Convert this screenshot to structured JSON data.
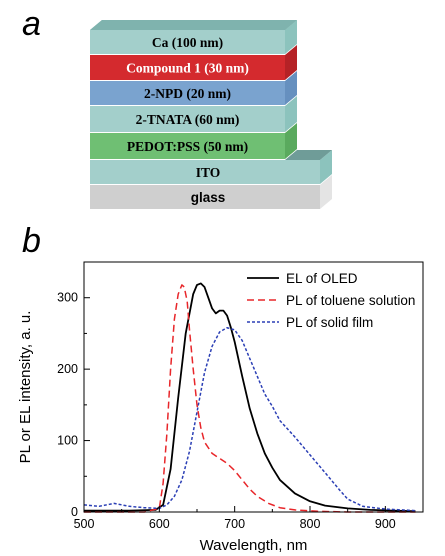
{
  "panels": {
    "a": "a",
    "b": "b"
  },
  "stack": {
    "layers": [
      {
        "label": "Ca (100 nm)",
        "front": "#a3cfcb",
        "top": "#7fb3ae",
        "side": "#8cc3bd",
        "text": "#000000"
      },
      {
        "label": "Compound 1 (30 nm)",
        "front": "#d42a2e",
        "top": "#b21e22",
        "side": "#b52226",
        "text": "#ffffff"
      },
      {
        "label": "2-NPD (20 nm)",
        "front": "#7aa3cf",
        "top": "#5d86b3",
        "side": "#6690bf",
        "text": "#000000"
      },
      {
        "label": "2-TNATA (60 nm)",
        "front": "#a3cfcb",
        "top": "#85b8b3",
        "side": "#8cc3bd",
        "text": "#000000"
      },
      {
        "label": "PEDOT:PSS (50 nm)",
        "front": "#6fbf73",
        "top": "#57a65c",
        "side": "#5aaa5e",
        "text": "#000000"
      },
      {
        "label": "ITO",
        "front": "#a3cfcb",
        "top": "#6f9c98",
        "side": "#8cc3bd",
        "text": "#000000"
      },
      {
        "label": "glass",
        "front": "#cfcfcf",
        "top": "#b9b9b9",
        "side": "#e4e4e4",
        "text": "#000000"
      }
    ]
  },
  "chart_data": {
    "type": "line",
    "xlabel": "Wavelength, nm",
    "ylabel": "PL or EL intensity, a. u.",
    "xlim": [
      500,
      950
    ],
    "ylim": [
      0,
      350
    ],
    "xticks": [
      500,
      600,
      700,
      800,
      900
    ],
    "yticks": [
      0,
      100,
      200,
      300
    ],
    "legend_position": "top-right",
    "series": [
      {
        "name": "EL of OLED",
        "color": "#000000",
        "dash": "solid",
        "x": [
          500,
          560,
          595,
          605,
          615,
          625,
          635,
          645,
          650,
          655,
          660,
          665,
          670,
          675,
          680,
          685,
          690,
          695,
          700,
          710,
          720,
          730,
          740,
          750,
          760,
          780,
          800,
          820,
          850,
          880,
          910,
          940
        ],
        "y": [
          2,
          2,
          3,
          10,
          60,
          160,
          250,
          305,
          318,
          320,
          315,
          300,
          285,
          278,
          282,
          282,
          275,
          258,
          238,
          190,
          145,
          110,
          82,
          62,
          45,
          26,
          15,
          9,
          5,
          3,
          2,
          1
        ]
      },
      {
        "name": "PL of toluene solution",
        "color": "#e8262a",
        "dash": "dashed",
        "x": [
          500,
          580,
          600,
          605,
          610,
          615,
          620,
          625,
          630,
          633,
          637,
          640,
          645,
          650,
          655,
          660,
          670,
          680,
          690,
          700,
          710,
          720,
          730,
          745,
          760,
          780,
          810,
          850,
          940
        ],
        "y": [
          0,
          0,
          5,
          40,
          110,
          200,
          270,
          305,
          318,
          315,
          295,
          255,
          200,
          150,
          118,
          98,
          82,
          75,
          68,
          58,
          45,
          32,
          22,
          12,
          6,
          3,
          1,
          0,
          0
        ]
      },
      {
        "name": "PL of solid film",
        "color": "#2b3fb5",
        "dash": "dotted",
        "x": [
          500,
          520,
          540,
          560,
          580,
          600,
          610,
          620,
          630,
          640,
          650,
          660,
          670,
          680,
          690,
          700,
          710,
          720,
          730,
          740,
          750,
          760,
          780,
          800,
          820,
          840,
          850,
          870,
          900,
          940
        ],
        "y": [
          10,
          8,
          12,
          8,
          6,
          5,
          10,
          22,
          45,
          85,
          140,
          195,
          232,
          252,
          258,
          255,
          240,
          215,
          190,
          165,
          148,
          128,
          105,
          80,
          55,
          30,
          18,
          8,
          4,
          2
        ]
      }
    ]
  }
}
